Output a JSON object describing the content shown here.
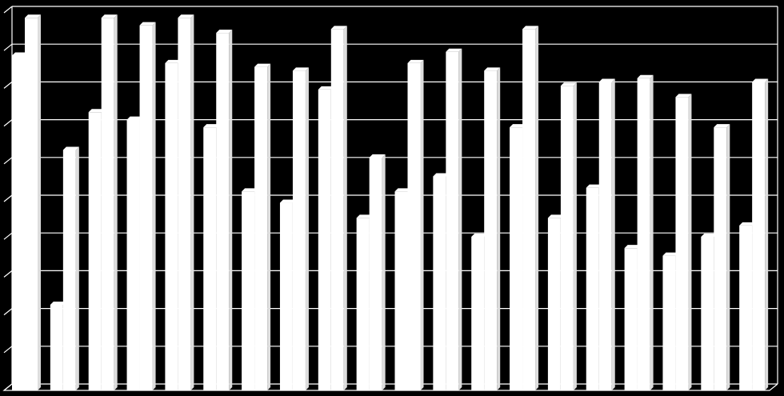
{
  "chart_data": {
    "type": "bar",
    "bar_style": "3d",
    "background_color": "#000000",
    "bar_color": "#ffffff",
    "grid_color": "#ffffff",
    "grid": true,
    "legend": "none",
    "title": "",
    "xlabel": "",
    "ylabel": "",
    "ylim": [
      0,
      10
    ],
    "categories": [
      "",
      "",
      "",
      "",
      "",
      "",
      "",
      "",
      "",
      "",
      "",
      "",
      "",
      "",
      "",
      "",
      "",
      "",
      "",
      ""
    ],
    "series": [
      {
        "values": [
          8.8,
          2.2,
          7.3,
          7.1,
          8.6,
          6.9,
          5.2,
          4.9,
          7.9,
          4.5,
          5.2,
          5.6,
          4.0,
          6.9,
          4.5,
          5.3,
          3.7,
          3.5,
          4.0,
          4.3
        ]
      },
      {
        "values": [
          9.8,
          6.3,
          9.8,
          9.6,
          9.8,
          9.4,
          8.5,
          8.4,
          9.5,
          6.1,
          8.6,
          8.9,
          8.4,
          9.5,
          8.0,
          8.1,
          8.2,
          7.7,
          6.9,
          8.1
        ]
      }
    ]
  }
}
